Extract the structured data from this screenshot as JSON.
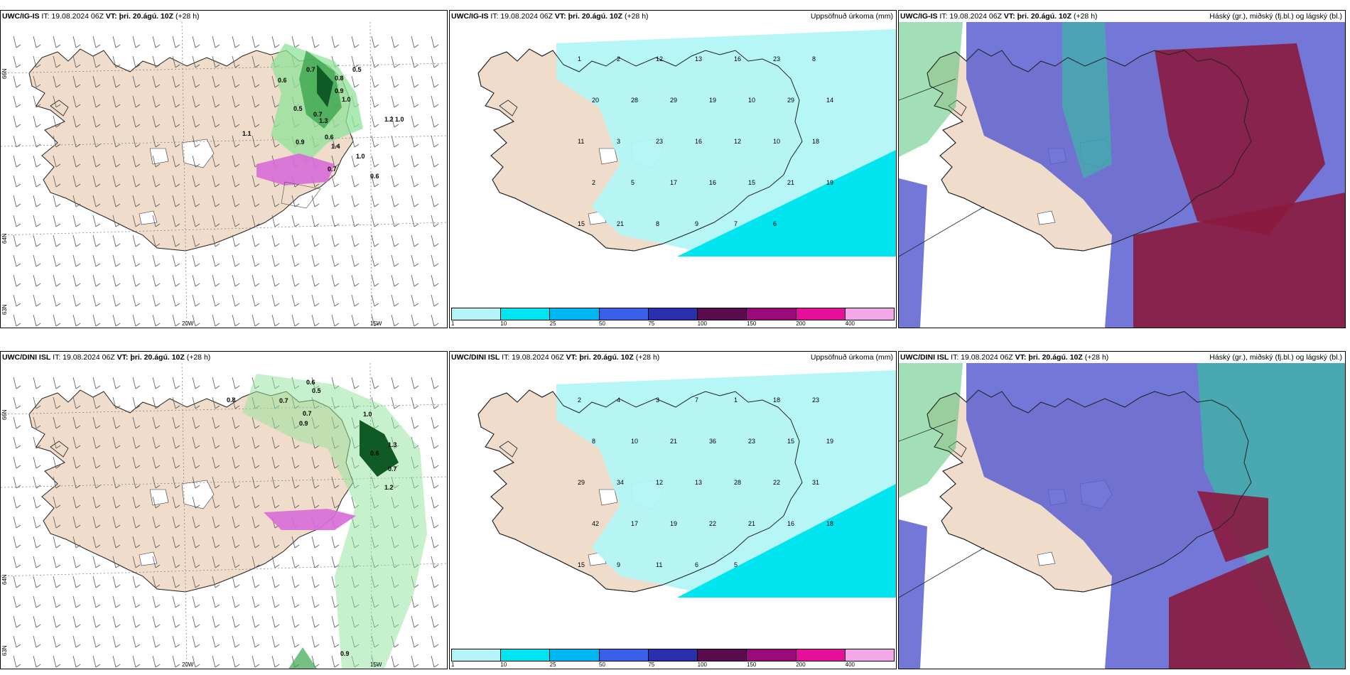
{
  "panels": [
    {
      "model": "UWC/IG-IS",
      "it": "IT: 19.08.2024 06Z",
      "vt_prefix": "VT:",
      "vt": "þri. 20.ágú. 10Z",
      "lead": "(+28 h)",
      "right_title": ""
    },
    {
      "model": "UWC/IG-IS",
      "it": "IT: 19.08.2024 06Z",
      "vt_prefix": "VT:",
      "vt": "þri. 20.ágú. 10Z",
      "lead": "(+28 h)",
      "right_title": "Uppsöfnuð úrkoma (mm)"
    },
    {
      "model": "UWC/IG-IS",
      "it": "IT: 19.08.2024 06Z",
      "vt_prefix": "VT:",
      "vt": "þri. 20.ágú. 10Z",
      "lead": "(+28 h)",
      "right_title": "Háský (gr.), miðský (fj.bl.) og lágský (bl.)"
    },
    {
      "model": "UWC/DINI ISL",
      "it": "IT: 19.08.2024 06Z",
      "vt_prefix": "VT:",
      "vt": "þri. 20.ágú. 10Z",
      "lead": "(+28 h)",
      "right_title": ""
    },
    {
      "model": "UWC/DINI ISL",
      "it": "IT: 19.08.2024 06Z",
      "vt_prefix": "VT:",
      "vt": "þri. 20.ágú. 10Z",
      "lead": "(+28 h)",
      "right_title": "Uppsöfnuð úrkoma (mm)"
    },
    {
      "model": "UWC/DINI ISL",
      "it": "IT: 19.08.2024 06Z",
      "vt_prefix": "VT:",
      "vt": "þri. 20.ágú. 10Z",
      "lead": "(+28 h)",
      "right_title": "Háský (gr.), miðský (fj.bl.) og lágský (bl.)"
    }
  ],
  "axis_labels": {
    "lon_20w": "20W",
    "lon_15w": "15W",
    "lat_66n": "66N",
    "lat_64n": "64N",
    "lat_65n": "63N"
  },
  "precip_legend": {
    "ticks": [
      "1",
      "10",
      "25",
      "50",
      "75",
      "100",
      "150",
      "200",
      "400"
    ],
    "colors": [
      "#b3f5f7",
      "#00e5ef",
      "#00b7f2",
      "#3a5fe8",
      "#2a2fb0",
      "#5c0b4f",
      "#9a0a7a",
      "#e60f9d",
      "#f5a8e8"
    ]
  },
  "colors": {
    "land": "#f0dccb",
    "sea": "#ffffff",
    "precip_light": "#b3f5f7",
    "precip_med": "#00e5ef",
    "rain_green": "#90e39a",
    "rain_dark": "#0f5a25",
    "snow_pink": "#d86bd8",
    "cloud_high": "#2ec99a",
    "cloud_mid": "#5a5fd0",
    "cloud_low": "#8b1a3f"
  },
  "rain_values_top": [
    "0.7",
    "0.6",
    "0.5",
    "0.8",
    "0.9",
    "1.0",
    "0.5",
    "0.7",
    "1.3",
    "0.6",
    "1.1",
    "0.9",
    "1.4",
    "0.7",
    "1.0",
    "0.6",
    "1.2",
    "1.0"
  ],
  "rain_values_bottom": [
    "0.6",
    "0.7",
    "0.5",
    "0.8",
    "0.7",
    "0.9",
    "1.0",
    "1.3",
    "0.6",
    "0.7",
    "1.2",
    "0.9"
  ],
  "precip_values_top": [
    "1",
    "2",
    "12",
    "13",
    "16",
    "23",
    "8",
    "20",
    "28",
    "29",
    "19",
    "10",
    "29",
    "14",
    "11",
    "3",
    "23",
    "16",
    "12",
    "10",
    "18",
    "2",
    "5",
    "17",
    "16",
    "15",
    "21",
    "19",
    "15",
    "21",
    "8",
    "9",
    "7",
    "6"
  ],
  "precip_values_bottom": [
    "2",
    "4",
    "3",
    "7",
    "1",
    "18",
    "23",
    "8",
    "10",
    "21",
    "36",
    "23",
    "15",
    "19",
    "29",
    "34",
    "12",
    "13",
    "28",
    "22",
    "31",
    "42",
    "17",
    "19",
    "22",
    "21",
    "16",
    "18",
    "15",
    "9",
    "11",
    "6",
    "5"
  ]
}
